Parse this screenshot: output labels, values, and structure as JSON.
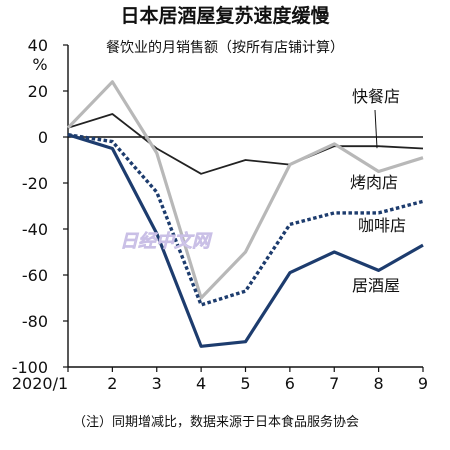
{
  "chart_data": {
    "type": "line",
    "title": "日本居酒屋复苏速度缓慢",
    "subtitle": "餐饮业的月销售额（按所有店铺计算）",
    "y_unit": "%",
    "x": [
      "2020/1",
      "2",
      "3",
      "4",
      "5",
      "6",
      "7",
      "8",
      "9"
    ],
    "ylim": [
      -100,
      40
    ],
    "yticks": [
      40,
      20,
      0,
      -20,
      -40,
      -60,
      -80,
      -100
    ],
    "series": [
      {
        "name": "快餐店",
        "color": "#222222",
        "style": "thin",
        "values": [
          4,
          10,
          -5,
          -16,
          -10,
          -12,
          -4,
          -4,
          -5
        ]
      },
      {
        "name": "烤肉店",
        "color": "#b8b8b8",
        "style": "solid",
        "values": [
          4,
          24,
          -7,
          -70,
          -50,
          -12,
          -3,
          -15,
          -9
        ]
      },
      {
        "name": "咖啡店",
        "color": "#1d3c6e",
        "style": "dotted",
        "values": [
          1,
          -2,
          -24,
          -73,
          -67,
          -38,
          -33,
          -33,
          -28
        ]
      },
      {
        "name": "居酒屋",
        "color": "#1d3c6e",
        "style": "solid",
        "values": [
          1,
          -5,
          -42,
          -91,
          -89,
          -59,
          -50,
          -58,
          -47
        ]
      }
    ],
    "note": "（注）同期增减比，数据来源于日本食品服务协会",
    "watermark": "日经中文网"
  }
}
